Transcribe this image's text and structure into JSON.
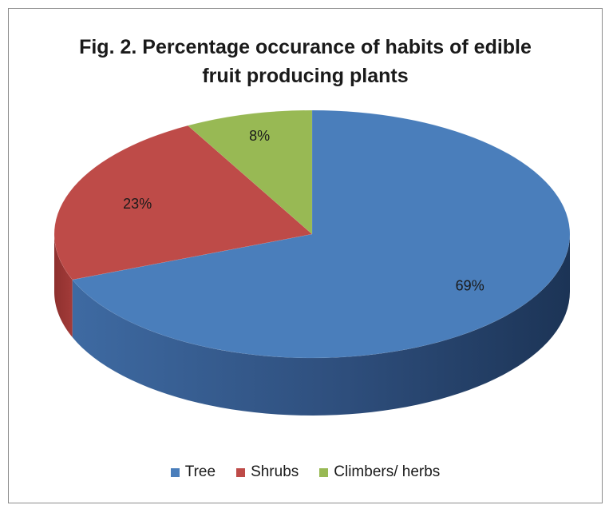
{
  "chart_data": {
    "type": "pie",
    "title_lines": [
      "Fig. 2. Percentage occurance of habits of edible",
      "fruit producing plants"
    ],
    "slices": [
      {
        "name": "Tree",
        "value": 69,
        "label": "69%",
        "color": "#4a7ebb"
      },
      {
        "name": "Shrubs",
        "value": 23,
        "label": "23%",
        "color": "#be4b48"
      },
      {
        "name": "Climbers/ herbs",
        "value": 8,
        "label": "8%",
        "color": "#98b954"
      }
    ],
    "style": "3d",
    "legend_position": "bottom"
  }
}
